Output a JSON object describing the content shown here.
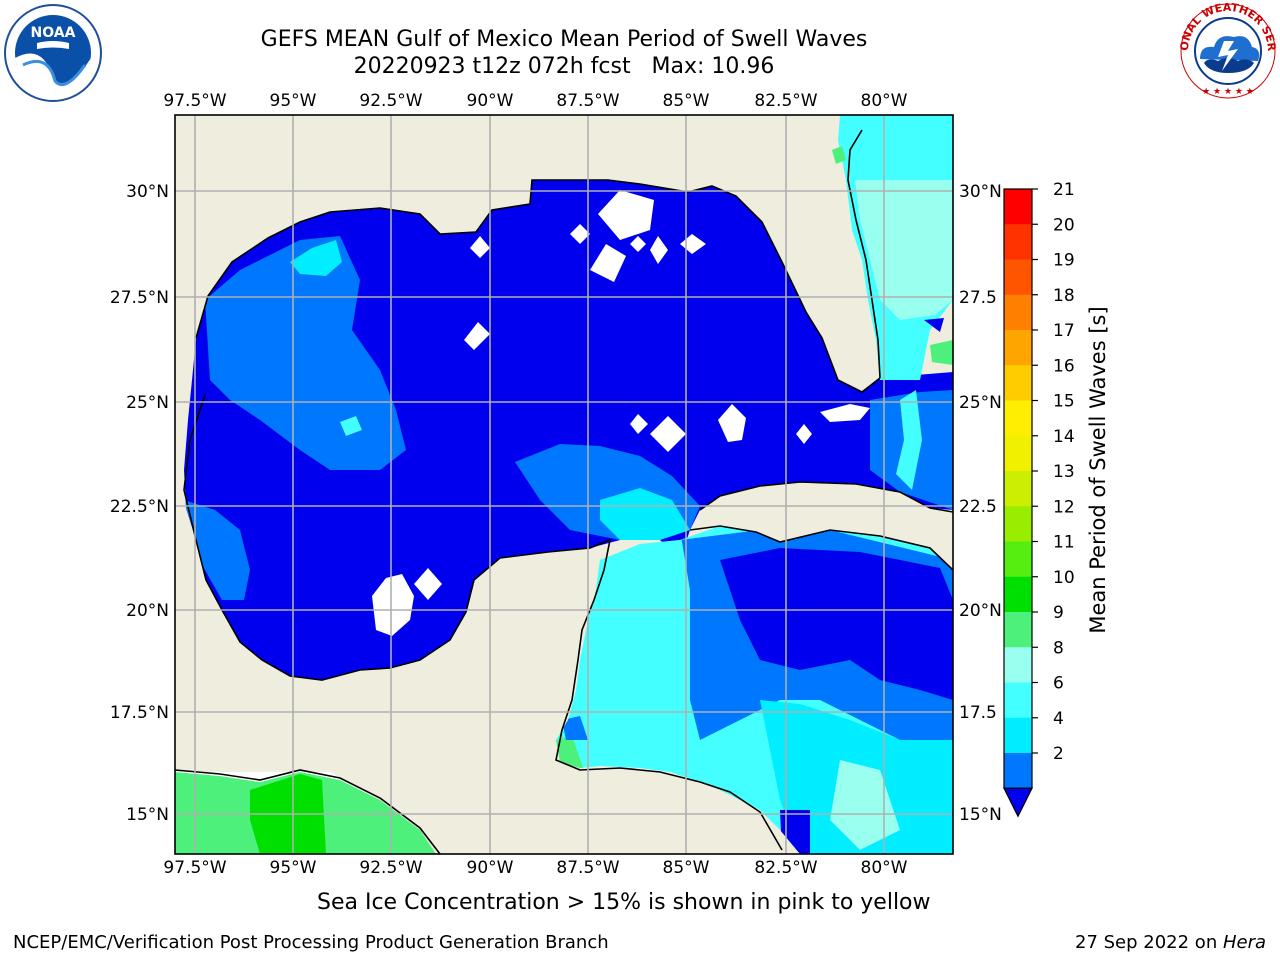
{
  "title": {
    "line1": "GEFS MEAN Gulf of Mexico Mean Period of Swell Waves",
    "line2": "20220923 t12z 072h fcst   Max: 10.96"
  },
  "logos": {
    "left": {
      "icon": "noaa-logo-icon",
      "text": "NOAA"
    },
    "right": {
      "icon": "nws-logo-icon",
      "text": "NATIONAL WEATHER SERVICE"
    }
  },
  "map": {
    "lon_ticks": [
      "97.5°W",
      "95°W",
      "92.5°W",
      "90°W",
      "87.5°W",
      "85°W",
      "82.5°W",
      "80°W"
    ],
    "lat_ticks_left": [
      "30°N",
      "27.5°N",
      "25°N",
      "22.5°N",
      "20°N",
      "17.5°N",
      "15°N"
    ],
    "lat_ticks_right": [
      "30°N",
      "27.5",
      "25°N",
      "22.5",
      "20°N",
      "17.5",
      "15°N"
    ],
    "land_color": "#efedde",
    "coast_color": "#000000",
    "grid_color": "#b0b0b0"
  },
  "colorbar": {
    "label": "Mean Period of Swell Waves [s]",
    "ticks": [
      "21",
      "20",
      "19",
      "18",
      "17",
      "16",
      "15",
      "14",
      "13",
      "12",
      "11",
      "10",
      "9",
      "8",
      "6",
      "4",
      "2"
    ],
    "colors": [
      "#ff0000",
      "#ff3300",
      "#ff5500",
      "#ff8000",
      "#ffa500",
      "#ffcc00",
      "#ffee00",
      "#f0f000",
      "#ccee00",
      "#99ee00",
      "#55ee11",
      "#00e000",
      "#4df07a",
      "#99ffee",
      "#44ffff",
      "#00eeff",
      "#0077ff"
    ],
    "extend_color": "#0000ee"
  },
  "subnote": "Sea Ice Concentration > 15% is shown in pink to yellow",
  "footer": {
    "left": "NCEP/EMC/Verification Post Processing Product Generation Branch",
    "right_date": "27 Sep 2022 on ",
    "right_host": "Hera"
  }
}
